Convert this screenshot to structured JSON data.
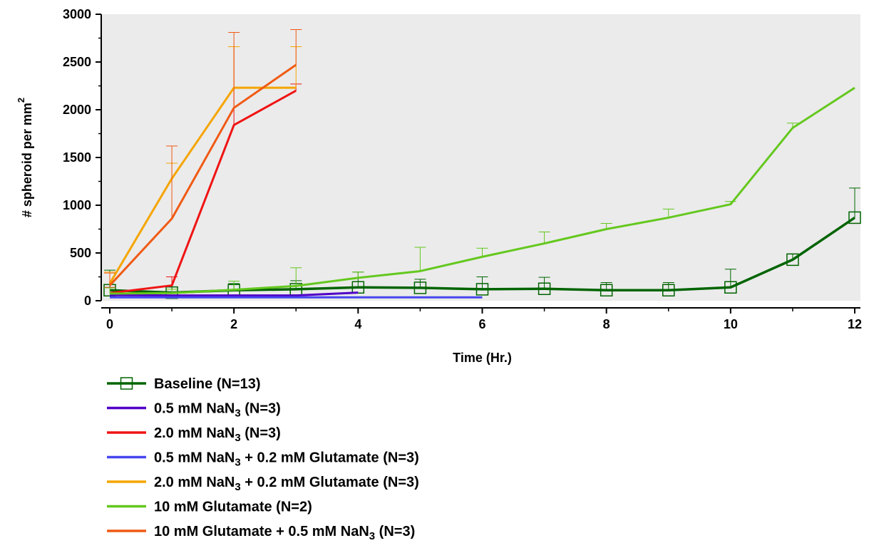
{
  "chart_data": {
    "type": "line",
    "title": "",
    "xlabel": "Time (Hr.)",
    "ylabel": "# spheroid per mm",
    "ylabel_superscript": "2",
    "xlim": [
      0,
      12
    ],
    "ylim": [
      0,
      3000
    ],
    "x_ticks": [
      0,
      2,
      4,
      6,
      8,
      10,
      12
    ],
    "y_ticks": [
      0,
      500,
      1000,
      1500,
      2000,
      2500,
      3000
    ],
    "plot_background": "#ebebeb",
    "grid": false,
    "legend_placement": "bottom-left",
    "series": [
      {
        "name": "Baseline (N=13)",
        "label": {
          "pre": "Baseline (N=13)",
          "sub": "",
          "post": ""
        },
        "color": "#006400",
        "marker": "open-square",
        "x": [
          0,
          1,
          2,
          3,
          4,
          5,
          6,
          7,
          8,
          9,
          10,
          11,
          12
        ],
        "y": [
          110,
          85,
          110,
          120,
          140,
          135,
          120,
          125,
          110,
          110,
          140,
          430,
          870
        ],
        "err": [
          210,
          60,
          70,
          90,
          160,
          90,
          130,
          120,
          80,
          80,
          190,
          60,
          310
        ]
      },
      {
        "name": "0.5 mM NaN3 (N=3)",
        "label": {
          "pre": "0.5 mM NaN",
          "sub": "3",
          "post": " (N=3)"
        },
        "color": "#5000c8",
        "marker": "none",
        "x": [
          0,
          1,
          2,
          3,
          4
        ],
        "y": [
          60,
          55,
          55,
          55,
          85
        ],
        "err": [
          0,
          0,
          0,
          0,
          0
        ]
      },
      {
        "name": "2.0 mM NaN3 (N=3)",
        "label": {
          "pre": "2.0 mM NaN",
          "sub": "3",
          "post": " (N=3)"
        },
        "color": "#f01414",
        "marker": "none",
        "x": [
          0,
          1,
          2,
          3
        ],
        "y": [
          80,
          160,
          1840,
          2200
        ],
        "err": [
          60,
          90,
          820,
          70
        ]
      },
      {
        "name": "0.5 mM NaN3 + 0.2 mM Glutamate (N=3)",
        "label": {
          "pre": "0.5 mM NaN",
          "sub": "3",
          "post": " + 0.2 mM Glutamate (N=3)"
        },
        "color": "#4646f0",
        "marker": "none",
        "x": [
          0,
          1,
          2,
          3,
          4,
          5,
          6
        ],
        "y": [
          35,
          35,
          35,
          35,
          35,
          35,
          35
        ],
        "err": [
          0,
          0,
          0,
          0,
          0,
          0,
          0
        ]
      },
      {
        "name": "2.0 mM NaN3 + 0.2 mM Glutamate (N=3)",
        "label": {
          "pre": "2.0 mM NaN",
          "sub": "3",
          "post": " + 0.2 mM Glutamate (N=3)"
        },
        "color": "#f5a500",
        "marker": "none",
        "x": [
          0,
          1,
          2,
          3
        ],
        "y": [
          180,
          1280,
          2230,
          2230
        ],
        "err": [
          120,
          160,
          430,
          430
        ]
      },
      {
        "name": "10 mM Glutamate (N=2)",
        "label": {
          "pre": "10 mM Glutamate (N=2)",
          "sub": "",
          "post": ""
        },
        "color": "#64c81e",
        "marker": "none",
        "x": [
          0,
          1,
          2,
          3,
          4,
          5,
          6,
          7,
          8,
          9,
          10,
          11,
          12
        ],
        "y": [
          75,
          80,
          115,
          155,
          240,
          310,
          460,
          600,
          750,
          870,
          1010,
          1810,
          2230
        ],
        "err": [
          60,
          40,
          90,
          190,
          60,
          250,
          90,
          120,
          60,
          90,
          30,
          50,
          0
        ]
      },
      {
        "name": "10 mM Glutamate + 0.5 mM NaN3 (N=3)",
        "label": {
          "pre": "10 mM Glutamate + 0.5 mM NaN",
          "sub": "3",
          "post": " (N=3)"
        },
        "color": "#f05a14",
        "marker": "none",
        "x": [
          0,
          1,
          2,
          3
        ],
        "y": [
          160,
          860,
          2020,
          2470
        ],
        "err": [
          130,
          760,
          790,
          370
        ]
      }
    ]
  }
}
